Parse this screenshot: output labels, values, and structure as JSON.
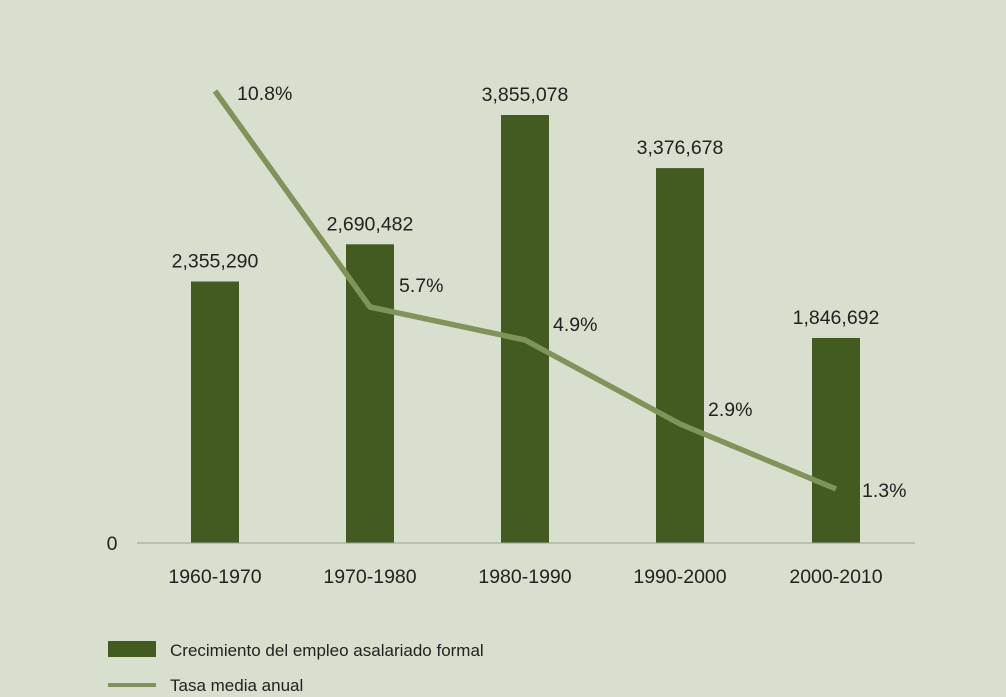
{
  "colors": {
    "background": "#d9dfce",
    "bar": "#435b21",
    "line": "#80935b",
    "axis": "#9aa08e",
    "text": "#222222"
  },
  "chart_data": {
    "type": "bar",
    "categories": [
      "1960-1970",
      "1970-1980",
      "1980-1990",
      "1990-2000",
      "2000-2010"
    ],
    "series": [
      {
        "name": "Crecimiento del empleo asalariado formal",
        "type": "bar",
        "values": [
          2355290,
          2690482,
          3855078,
          3376678,
          1846692
        ],
        "value_labels": [
          "2,355,290",
          "2,690,482",
          "3,855,078",
          "3,376,678",
          "1,846,692"
        ]
      },
      {
        "name": "Tasa media anual",
        "type": "line",
        "values": [
          10.8,
          5.7,
          4.9,
          2.9,
          1.3
        ],
        "value_labels": [
          "10.8%",
          "5.7%",
          "4.9%",
          "2.9%",
          "1.3%"
        ]
      }
    ],
    "y_tick_labels": [
      "0"
    ],
    "grid": false,
    "legend_position": "bottom-left"
  }
}
